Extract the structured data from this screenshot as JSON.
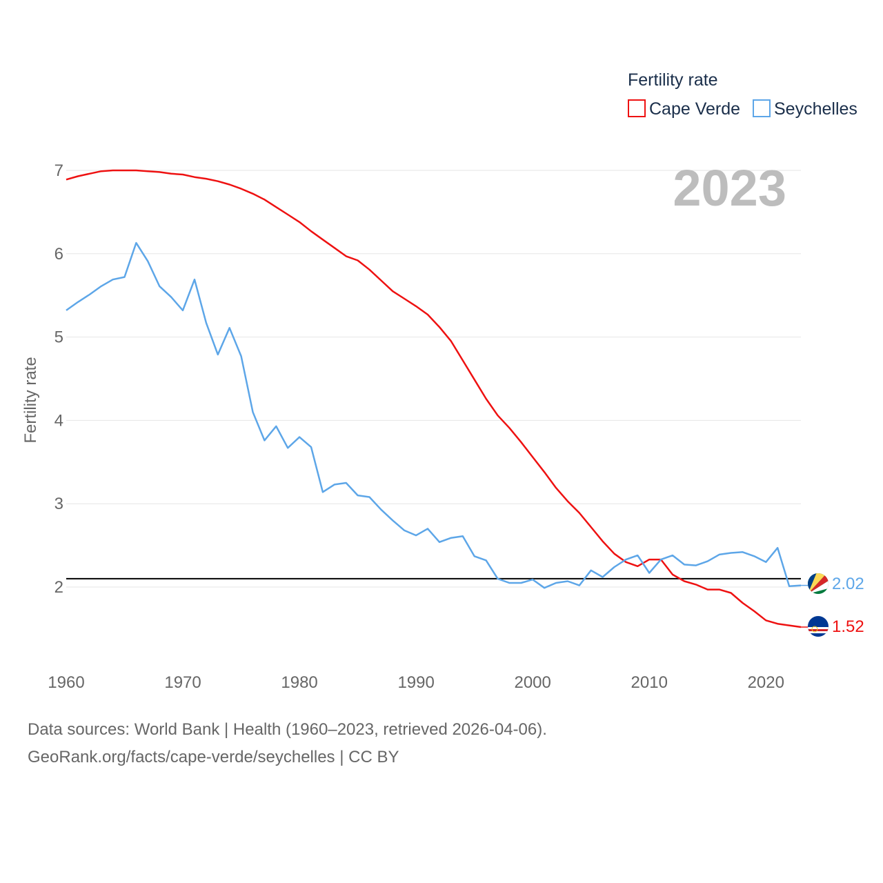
{
  "chart_data": {
    "type": "line",
    "legend_title": "Fertility rate",
    "ylabel": "Fertility rate",
    "year_label": "2023",
    "xlim": [
      1960,
      2023
    ],
    "ylim": [
      1.3,
      7.2
    ],
    "x_ticks": [
      1960,
      1970,
      1980,
      1990,
      2000,
      2010,
      2020
    ],
    "y_ticks": [
      2,
      3,
      4,
      5,
      6,
      7
    ],
    "reference_line": 2.1,
    "x": [
      1960,
      1961,
      1962,
      1963,
      1964,
      1965,
      1966,
      1967,
      1968,
      1969,
      1970,
      1971,
      1972,
      1973,
      1974,
      1975,
      1976,
      1977,
      1978,
      1979,
      1980,
      1981,
      1982,
      1983,
      1984,
      1985,
      1986,
      1987,
      1988,
      1989,
      1990,
      1991,
      1992,
      1993,
      1994,
      1995,
      1996,
      1997,
      1998,
      1999,
      2000,
      2001,
      2002,
      2003,
      2004,
      2005,
      2006,
      2007,
      2008,
      2009,
      2010,
      2011,
      2012,
      2013,
      2014,
      2015,
      2016,
      2017,
      2018,
      2019,
      2020,
      2021,
      2022,
      2023
    ],
    "series": [
      {
        "name": "Cape Verde",
        "color": "#ee1111",
        "end_label": "1.52",
        "values": [
          6.89,
          6.93,
          6.96,
          6.99,
          7.0,
          7.0,
          7.0,
          6.99,
          6.98,
          6.96,
          6.95,
          6.92,
          6.9,
          6.87,
          6.83,
          6.78,
          6.72,
          6.65,
          6.56,
          6.47,
          6.38,
          6.27,
          6.17,
          6.07,
          5.97,
          5.92,
          5.81,
          5.68,
          5.55,
          5.46,
          5.37,
          5.27,
          5.12,
          4.95,
          4.72,
          4.49,
          4.26,
          4.06,
          3.91,
          3.74,
          3.56,
          3.38,
          3.19,
          3.03,
          2.89,
          2.72,
          2.55,
          2.4,
          2.3,
          2.25,
          2.33,
          2.33,
          2.15,
          2.07,
          2.03,
          1.97,
          1.97,
          1.93,
          1.81,
          1.71,
          1.6,
          1.56,
          1.54,
          1.52
        ]
      },
      {
        "name": "Seychelles",
        "color": "#5da6e8",
        "end_label": "2.02",
        "values": [
          5.32,
          5.42,
          5.51,
          5.61,
          5.69,
          5.72,
          6.13,
          5.91,
          5.61,
          5.48,
          5.32,
          5.69,
          5.17,
          4.79,
          5.11,
          4.77,
          4.1,
          3.76,
          3.93,
          3.67,
          3.8,
          3.68,
          3.14,
          3.23,
          3.25,
          3.1,
          3.08,
          2.93,
          2.8,
          2.68,
          2.62,
          2.7,
          2.54,
          2.59,
          2.61,
          2.37,
          2.32,
          2.1,
          2.05,
          2.05,
          2.09,
          1.99,
          2.05,
          2.07,
          2.02,
          2.2,
          2.12,
          2.24,
          2.33,
          2.38,
          2.17,
          2.33,
          2.38,
          2.27,
          2.26,
          2.31,
          2.39,
          2.41,
          2.42,
          2.37,
          2.3,
          2.47,
          2.01,
          2.02
        ]
      }
    ]
  },
  "footer": {
    "line1": "Data sources: World Bank | Health (1960–2023, retrieved 2026-04-06).",
    "line2": "GeoRank.org/facts/cape-verde/seychelles | CC BY"
  }
}
